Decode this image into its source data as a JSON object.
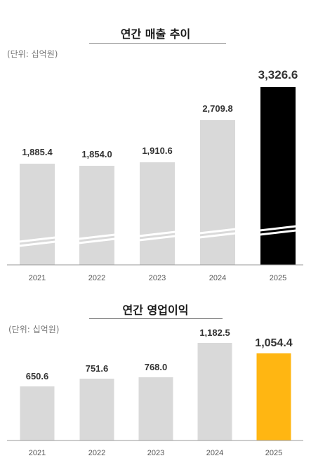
{
  "chart_data": [
    {
      "type": "bar",
      "title": "연간 매출 추이",
      "unit_label": "(단위: 십억원)",
      "categories": [
        "2021",
        "2022",
        "2023",
        "2024",
        "2025"
      ],
      "values": [
        1885.4,
        1854.0,
        1910.6,
        2709.8,
        3326.6
      ],
      "value_labels": [
        "1,885.4",
        "1,854.0",
        "1,910.6",
        "2,709.8",
        "3,326.6"
      ],
      "bar_colors": [
        "#d9d9d9",
        "#d9d9d9",
        "#d9d9d9",
        "#d9d9d9",
        "#000000"
      ],
      "axis_break": true
    },
    {
      "type": "bar",
      "title": "연간 영업이익",
      "unit_label": "(단위: 십억원)",
      "categories": [
        "2021",
        "2022",
        "2023",
        "2024",
        "2025"
      ],
      "values": [
        650.6,
        751.6,
        768.0,
        1182.5,
        1054.4
      ],
      "value_labels": [
        "650.6",
        "751.6",
        "768.0",
        "1,182.5",
        "1,054.4"
      ],
      "bar_colors": [
        "#d9d9d9",
        "#d9d9d9",
        "#d9d9d9",
        "#d9d9d9",
        "#ffb612"
      ],
      "axis_break": false
    }
  ]
}
